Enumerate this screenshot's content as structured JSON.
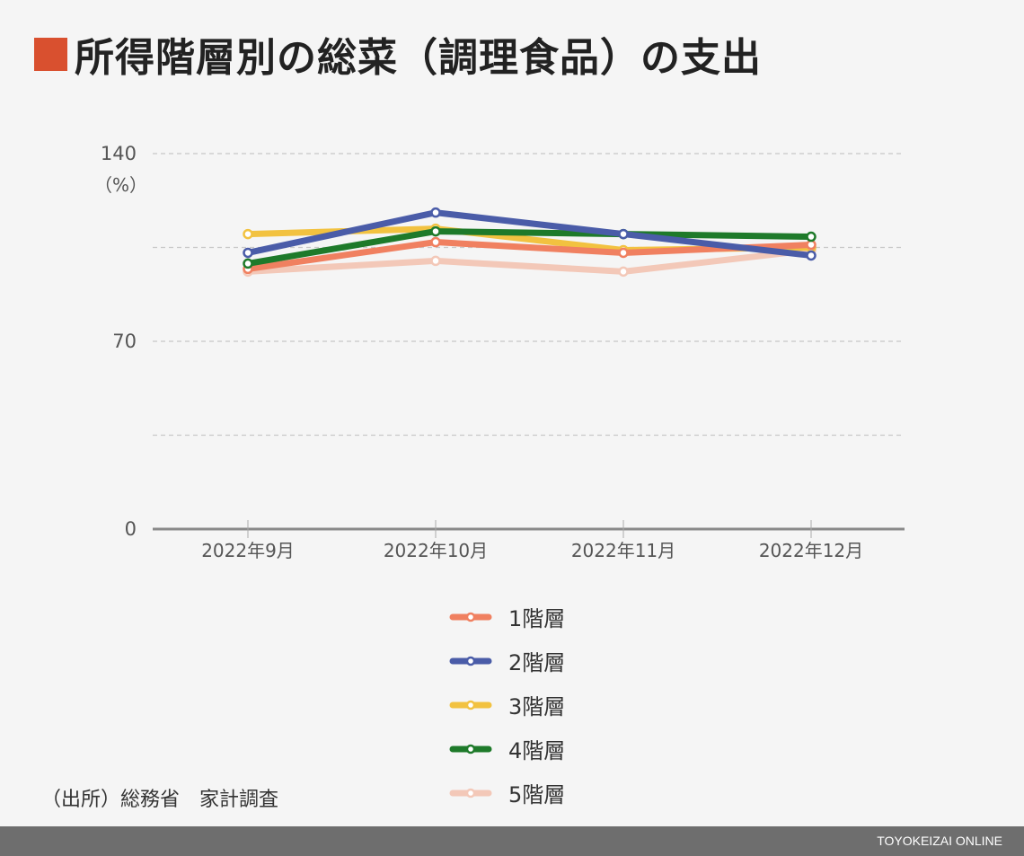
{
  "title": "所得階層別の総菜（調理食品）の支出",
  "accent_color": "#d9502f",
  "source": "（出所）総務省　家計調査",
  "footer": {
    "brand": "TOYOKEIZAI ONLINE",
    "bar_color": "#6e6e6e"
  },
  "chart_data": {
    "type": "line",
    "title": "所得階層別の総菜（調理食品）の支出",
    "ylabel": "（%）",
    "ylim": [
      0,
      140
    ],
    "yticks": [
      0,
      70,
      140
    ],
    "ygrid": [
      35,
      70,
      105,
      140
    ],
    "categories": [
      "2022年9月",
      "2022年10月",
      "2022年11月",
      "2022年12月"
    ],
    "legend_position": "bottom-center",
    "series": [
      {
        "name": "1階層",
        "color": "#f08060",
        "values": [
          97,
          107,
          103,
          106
        ]
      },
      {
        "name": "2階層",
        "color": "#4a5ca8",
        "values": [
          103,
          118,
          110,
          102
        ]
      },
      {
        "name": "3階層",
        "color": "#f2c240",
        "values": [
          110,
          112,
          104,
          105
        ]
      },
      {
        "name": "4階層",
        "color": "#1e7a2a",
        "values": [
          99,
          111,
          110,
          109
        ]
      },
      {
        "name": "5階層",
        "color": "#f3c8b8",
        "values": [
          96,
          100,
          96,
          104
        ]
      }
    ]
  }
}
